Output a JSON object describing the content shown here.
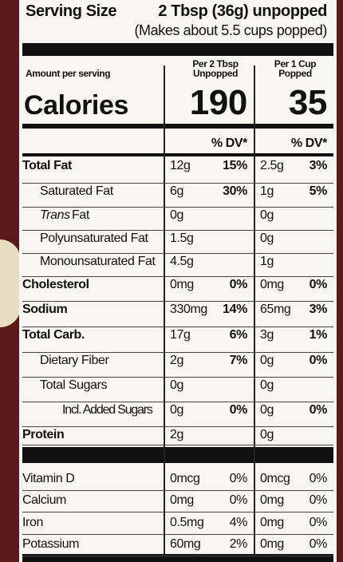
{
  "serving": {
    "label": "Serving Size",
    "amount": "2 Tbsp (36g) unpopped",
    "note": "(Makes about 5.5 cups popped)"
  },
  "header": {
    "amount_per_serving": "Amount per serving",
    "col1": [
      "Per 2 Tbsp",
      "Unpopped"
    ],
    "col2": [
      "Per 1 Cup",
      "Popped"
    ]
  },
  "calories": {
    "label": "Calories",
    "col1": "190",
    "col2": "35"
  },
  "dv_header": {
    "col1": "% DV*",
    "col2": "% DV*"
  },
  "rows": [
    {
      "label": "Total Fat",
      "amount1": "12g",
      "dv1": "15%",
      "amount2": "2.5g",
      "dv2": "3%"
    },
    {
      "label": "Saturated Fat",
      "amount1": "6g",
      "dv1": "30%",
      "amount2": "1g",
      "dv2": "5%"
    },
    {
      "label_italic": "Trans",
      "label": "Fat",
      "amount1": "0g",
      "amount2": "0g"
    },
    {
      "label": "Polyunsaturated Fat",
      "amount1": "1.5g",
      "amount2": "0g"
    },
    {
      "label": "Monounsaturated Fat",
      "amount1": "4.5g",
      "amount2": "1g"
    },
    {
      "label": "Cholesterol",
      "amount1": "0mg",
      "dv1": "0%",
      "amount2": "0mg",
      "dv2": "0%"
    },
    {
      "label": "Sodium",
      "amount1": "330mg",
      "dv1": "14%",
      "amount2": "65mg",
      "dv2": "3%"
    },
    {
      "label": "Total Carb.",
      "amount1": "17g",
      "dv1": "6%",
      "amount2": "3g",
      "dv2": "1%"
    },
    {
      "label": "Dietary Fiber",
      "amount1": "2g",
      "dv1": "7%",
      "amount2": "0g",
      "dv2": "0%"
    },
    {
      "label": "Total Sugars",
      "amount1": "0g",
      "amount2": "0g"
    },
    {
      "label": "Incl. Added Sugars",
      "amount1": "0g",
      "dv1": "0%",
      "amount2": "0g",
      "dv2": "0%"
    },
    {
      "label": "Protein",
      "amount1": "2g",
      "amount2": "0g"
    }
  ],
  "vitamins": [
    {
      "label": "Vitamin D",
      "amount1": "0mcg",
      "dv1": "0%",
      "amount2": "0mcg",
      "dv2": "0%"
    },
    {
      "label": "Calcium",
      "amount1": "0mg",
      "dv1": "0%",
      "amount2": "0mg",
      "dv2": "0%"
    },
    {
      "label": "Iron",
      "amount1": "0.5mg",
      "dv1": "4%",
      "amount2": "0mg",
      "dv2": "0%"
    },
    {
      "label": "Potassium",
      "amount1": "60mg",
      "dv1": "2%",
      "amount2": "0mg",
      "dv2": "0%"
    }
  ]
}
